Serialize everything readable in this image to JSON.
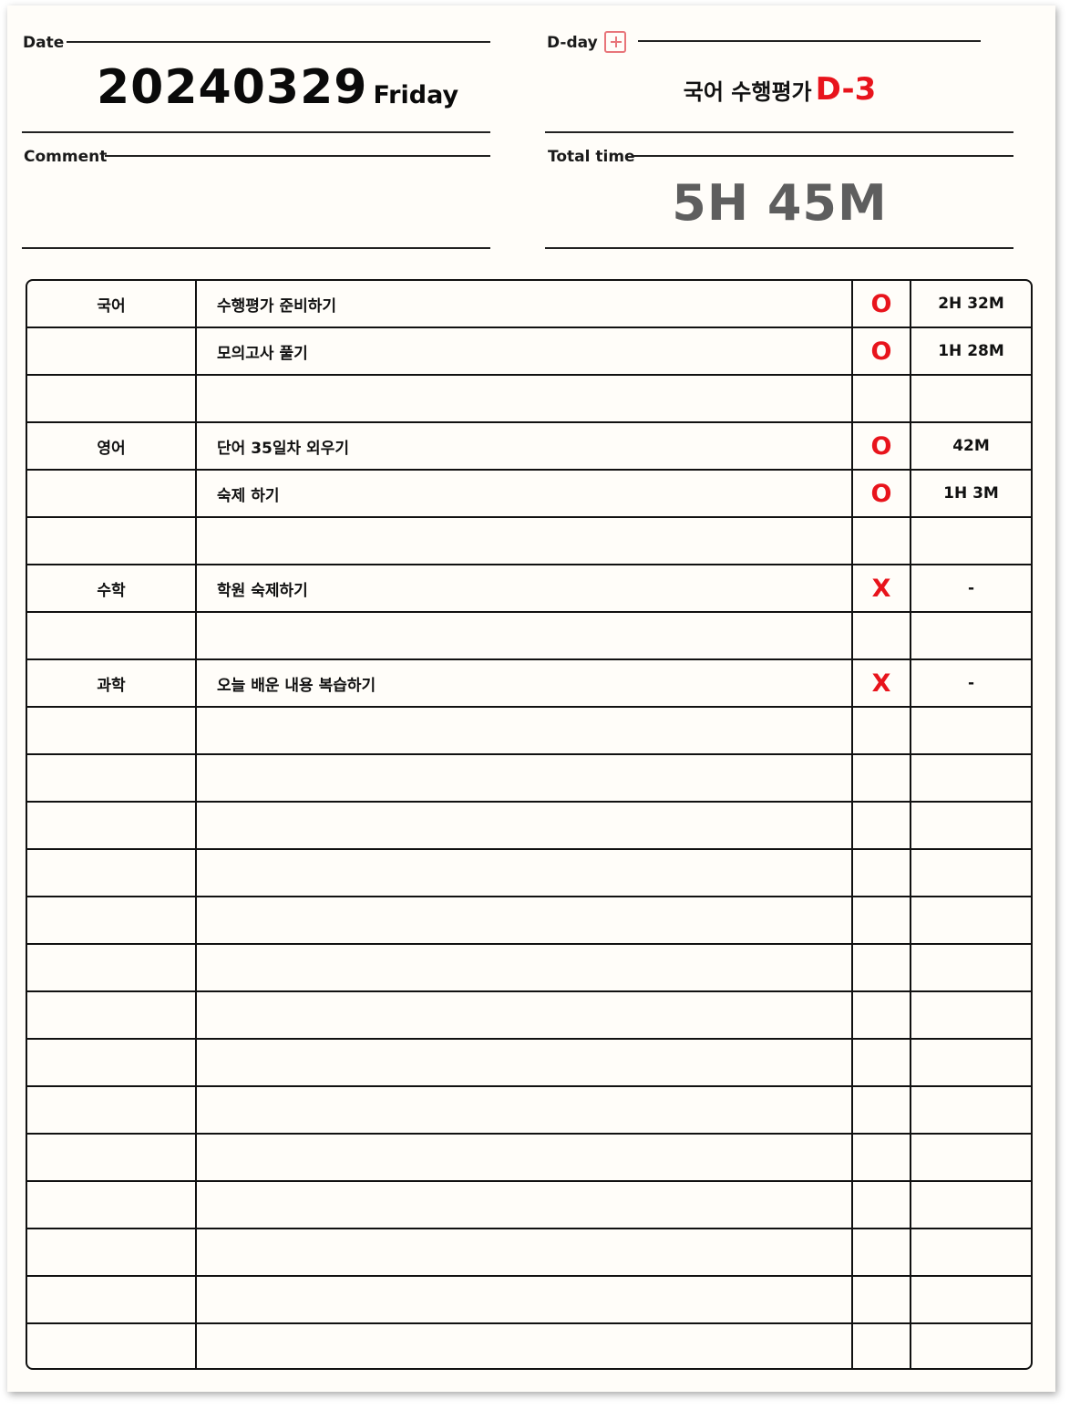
{
  "header": {
    "date_label": "Date",
    "date_value": "20240329",
    "weekday": "Friday",
    "dday_label": "D-day",
    "dday_title": "국어 수행평가",
    "dday_count": "D-3",
    "comment_label": "Comment",
    "comment_value": "",
    "total_label": "Total time",
    "total_value": "5H 45M"
  },
  "colors": {
    "accent_red": "#e8141c",
    "plus_icon": "#e8757a",
    "total_time_gray": "#5e5e5e"
  },
  "rows": [
    {
      "subject": "국어",
      "task": "수행평가 준비하기",
      "check": "O",
      "time": "2H 32M"
    },
    {
      "subject": "",
      "task": "모의고사 풀기",
      "check": "O",
      "time": "1H 28M"
    },
    {
      "subject": "",
      "task": "",
      "check": "",
      "time": ""
    },
    {
      "subject": "영어",
      "task": "단어 35일차 외우기",
      "check": "O",
      "time": "42M"
    },
    {
      "subject": "",
      "task": "숙제 하기",
      "check": "O",
      "time": "1H 3M"
    },
    {
      "subject": "",
      "task": "",
      "check": "",
      "time": ""
    },
    {
      "subject": "수학",
      "task": "학원 숙제하기",
      "check": "X",
      "time": "-"
    },
    {
      "subject": "",
      "task": "",
      "check": "",
      "time": ""
    },
    {
      "subject": "과학",
      "task": "오늘 배운 내용 복습하기",
      "check": "X",
      "time": "-"
    },
    {
      "subject": "",
      "task": "",
      "check": "",
      "time": ""
    },
    {
      "subject": "",
      "task": "",
      "check": "",
      "time": ""
    },
    {
      "subject": "",
      "task": "",
      "check": "",
      "time": ""
    },
    {
      "subject": "",
      "task": "",
      "check": "",
      "time": ""
    },
    {
      "subject": "",
      "task": "",
      "check": "",
      "time": ""
    },
    {
      "subject": "",
      "task": "",
      "check": "",
      "time": ""
    },
    {
      "subject": "",
      "task": "",
      "check": "",
      "time": ""
    },
    {
      "subject": "",
      "task": "",
      "check": "",
      "time": ""
    },
    {
      "subject": "",
      "task": "",
      "check": "",
      "time": ""
    },
    {
      "subject": "",
      "task": "",
      "check": "",
      "time": ""
    },
    {
      "subject": "",
      "task": "",
      "check": "",
      "time": ""
    },
    {
      "subject": "",
      "task": "",
      "check": "",
      "time": ""
    },
    {
      "subject": "",
      "task": "",
      "check": "",
      "time": ""
    },
    {
      "subject": "",
      "task": "",
      "check": "",
      "time": ""
    }
  ]
}
